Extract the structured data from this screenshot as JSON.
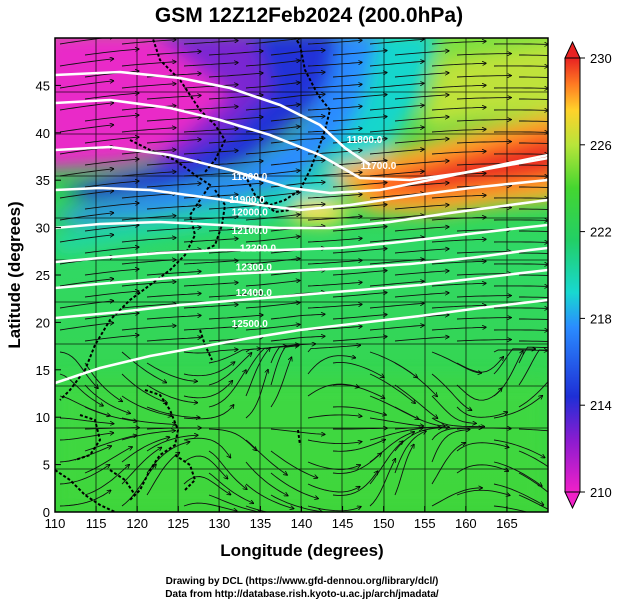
{
  "title": "GSM 12Z12Feb2024 (200.0hPa)",
  "xlabel": "Longitude (degrees)",
  "ylabel": "Latitude  (degrees)",
  "credits": [
    "Drawing by DCL (https://www.gfd-dennou.org/library/dcl/)",
    "Data from http://database.rish.kyoto-u.ac.jp/arch/jmadata/"
  ],
  "map": {
    "lon_range": [
      110,
      170
    ],
    "lat_range": [
      0,
      50
    ],
    "x_ticks": [
      "110",
      "115",
      "120",
      "125",
      "130",
      "135",
      "140",
      "145",
      "150",
      "155",
      "160",
      "165"
    ],
    "x_tick_values": [
      110,
      115,
      120,
      125,
      130,
      135,
      140,
      145,
      150,
      155,
      160,
      165
    ],
    "y_ticks": [
      "0",
      "5",
      "10",
      "15",
      "20",
      "25",
      "30",
      "35",
      "40",
      "45"
    ],
    "y_tick_values": [
      0,
      5,
      10,
      15,
      20,
      25,
      30,
      35,
      40,
      45
    ],
    "contour_labels": [
      {
        "text": "11800.0",
        "lon": 145.5,
        "lat": 38.9
      },
      {
        "text": "11700.0",
        "lon": 147.2,
        "lat": 36.2
      },
      {
        "text": "11800.0",
        "lon": 131.5,
        "lat": 35.0
      },
      {
        "text": "11900.0",
        "lon": 131.2,
        "lat": 32.6
      },
      {
        "text": "12000.0",
        "lon": 131.5,
        "lat": 31.3
      },
      {
        "text": "12100.0",
        "lon": 131.5,
        "lat": 29.3
      },
      {
        "text": "12200.0",
        "lon": 132.5,
        "lat": 27.5
      },
      {
        "text": "12300.0",
        "lon": 132.0,
        "lat": 25.5
      },
      {
        "text": "12400.0",
        "lon": 132.0,
        "lat": 22.8
      },
      {
        "text": "12500.0",
        "lon": 131.5,
        "lat": 19.5
      }
    ]
  },
  "colorbar": {
    "min": 210,
    "max": 230,
    "ticks": [
      "210",
      "214",
      "218",
      "222",
      "226",
      "230"
    ],
    "tick_values": [
      210,
      214,
      218,
      222,
      226,
      230
    ],
    "colors": [
      "#ee22cc",
      "#9a1fd0",
      "#1e2fd6",
      "#2a86ff",
      "#18d6d6",
      "#22cf66",
      "#33d633",
      "#8fe03a",
      "#e2e63a",
      "#ffae2a",
      "#ff5a22",
      "#e62222"
    ]
  }
}
